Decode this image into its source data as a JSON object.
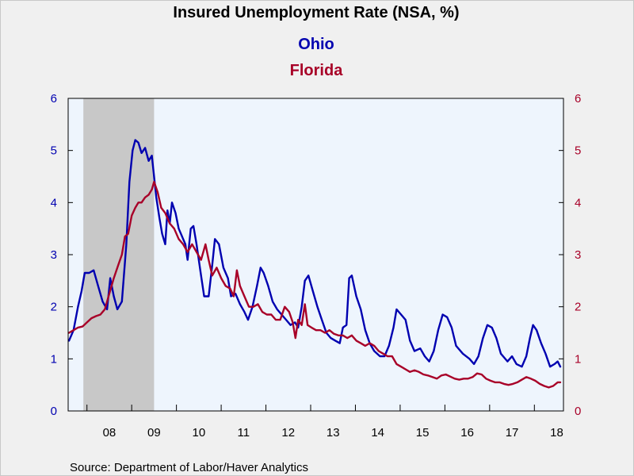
{
  "chart_data": {
    "type": "line",
    "title": "Insured Unemployment Rate (NSA, %)",
    "source": "Source:  Department of Labor/Haver Analytics",
    "x_tick_labels": [
      "08",
      "09",
      "10",
      "11",
      "12",
      "13",
      "14",
      "15",
      "16",
      "17",
      "18"
    ],
    "x_tick_years": [
      2008,
      2009,
      2010,
      2011,
      2012,
      2013,
      2014,
      2015,
      2016,
      2017,
      2018
    ],
    "xlim": [
      2007.58,
      2018.65
    ],
    "ylim": [
      0,
      6
    ],
    "y_ticks_left": [
      "0",
      "1",
      "2",
      "3",
      "4",
      "5",
      "6"
    ],
    "y_ticks_right": [
      "0",
      "1",
      "2",
      "3",
      "4",
      "5",
      "6"
    ],
    "recession_shading": [
      2007.92,
      2009.5
    ],
    "grid": false,
    "legend_placement": "top-center",
    "plot_background": "#eef5fd",
    "series": [
      {
        "name": "Ohio",
        "axis": "left",
        "color": "#0000b0",
        "points": [
          [
            2007.6,
            1.35
          ],
          [
            2007.7,
            1.55
          ],
          [
            2007.8,
            2.0
          ],
          [
            2007.88,
            2.3
          ],
          [
            2007.95,
            2.65
          ],
          [
            2008.05,
            2.65
          ],
          [
            2008.15,
            2.7
          ],
          [
            2008.25,
            2.4
          ],
          [
            2008.35,
            2.1
          ],
          [
            2008.45,
            1.95
          ],
          [
            2008.52,
            2.55
          ],
          [
            2008.6,
            2.2
          ],
          [
            2008.68,
            1.95
          ],
          [
            2008.78,
            2.1
          ],
          [
            2008.88,
            3.2
          ],
          [
            2008.95,
            4.4
          ],
          [
            2009.02,
            5.0
          ],
          [
            2009.08,
            5.2
          ],
          [
            2009.15,
            5.15
          ],
          [
            2009.22,
            4.95
          ],
          [
            2009.3,
            5.05
          ],
          [
            2009.38,
            4.8
          ],
          [
            2009.45,
            4.9
          ],
          [
            2009.55,
            4.1
          ],
          [
            2009.62,
            3.7
          ],
          [
            2009.68,
            3.4
          ],
          [
            2009.75,
            3.2
          ],
          [
            2009.8,
            3.85
          ],
          [
            2009.85,
            3.6
          ],
          [
            2009.9,
            4.0
          ],
          [
            2009.98,
            3.8
          ],
          [
            2010.05,
            3.5
          ],
          [
            2010.1,
            3.4
          ],
          [
            2010.15,
            3.3
          ],
          [
            2010.2,
            3.2
          ],
          [
            2010.25,
            2.9
          ],
          [
            2010.32,
            3.5
          ],
          [
            2010.38,
            3.55
          ],
          [
            2010.45,
            3.2
          ],
          [
            2010.55,
            2.6
          ],
          [
            2010.62,
            2.2
          ],
          [
            2010.72,
            2.2
          ],
          [
            2010.8,
            2.8
          ],
          [
            2010.86,
            3.3
          ],
          [
            2010.95,
            3.2
          ],
          [
            2011.05,
            2.75
          ],
          [
            2011.15,
            2.55
          ],
          [
            2011.22,
            2.2
          ],
          [
            2011.32,
            2.25
          ],
          [
            2011.42,
            2.05
          ],
          [
            2011.52,
            1.9
          ],
          [
            2011.6,
            1.75
          ],
          [
            2011.7,
            2.0
          ],
          [
            2011.8,
            2.4
          ],
          [
            2011.88,
            2.75
          ],
          [
            2011.95,
            2.65
          ],
          [
            2012.05,
            2.4
          ],
          [
            2012.15,
            2.1
          ],
          [
            2012.25,
            1.95
          ],
          [
            2012.35,
            1.85
          ],
          [
            2012.45,
            1.75
          ],
          [
            2012.55,
            1.65
          ],
          [
            2012.65,
            1.7
          ],
          [
            2012.72,
            1.6
          ],
          [
            2012.8,
            2.0
          ],
          [
            2012.87,
            2.5
          ],
          [
            2012.95,
            2.6
          ],
          [
            2013.05,
            2.3
          ],
          [
            2013.15,
            2.0
          ],
          [
            2013.25,
            1.75
          ],
          [
            2013.35,
            1.5
          ],
          [
            2013.45,
            1.4
          ],
          [
            2013.55,
            1.35
          ],
          [
            2013.65,
            1.3
          ],
          [
            2013.72,
            1.6
          ],
          [
            2013.8,
            1.65
          ],
          [
            2013.86,
            2.55
          ],
          [
            2013.92,
            2.6
          ],
          [
            2014.02,
            2.2
          ],
          [
            2014.12,
            1.95
          ],
          [
            2014.22,
            1.55
          ],
          [
            2014.32,
            1.3
          ],
          [
            2014.42,
            1.15
          ],
          [
            2014.55,
            1.05
          ],
          [
            2014.65,
            1.05
          ],
          [
            2014.75,
            1.25
          ],
          [
            2014.85,
            1.6
          ],
          [
            2014.92,
            1.95
          ],
          [
            2015.02,
            1.85
          ],
          [
            2015.12,
            1.75
          ],
          [
            2015.22,
            1.35
          ],
          [
            2015.32,
            1.15
          ],
          [
            2015.45,
            1.2
          ],
          [
            2015.55,
            1.05
          ],
          [
            2015.65,
            0.95
          ],
          [
            2015.75,
            1.15
          ],
          [
            2015.85,
            1.55
          ],
          [
            2015.95,
            1.85
          ],
          [
            2016.05,
            1.8
          ],
          [
            2016.15,
            1.6
          ],
          [
            2016.25,
            1.25
          ],
          [
            2016.4,
            1.1
          ],
          [
            2016.55,
            1.0
          ],
          [
            2016.65,
            0.9
          ],
          [
            2016.75,
            1.05
          ],
          [
            2016.85,
            1.4
          ],
          [
            2016.95,
            1.65
          ],
          [
            2017.05,
            1.6
          ],
          [
            2017.15,
            1.4
          ],
          [
            2017.25,
            1.1
          ],
          [
            2017.4,
            0.95
          ],
          [
            2017.5,
            1.05
          ],
          [
            2017.6,
            0.9
          ],
          [
            2017.72,
            0.85
          ],
          [
            2017.82,
            1.05
          ],
          [
            2017.9,
            1.4
          ],
          [
            2017.97,
            1.65
          ],
          [
            2018.05,
            1.55
          ],
          [
            2018.15,
            1.3
          ],
          [
            2018.25,
            1.1
          ],
          [
            2018.35,
            0.85
          ],
          [
            2018.45,
            0.9
          ],
          [
            2018.52,
            0.95
          ],
          [
            2018.58,
            0.85
          ]
        ]
      },
      {
        "name": "Florida",
        "axis": "right",
        "color": "#a80028",
        "points": [
          [
            2007.6,
            1.5
          ],
          [
            2007.7,
            1.55
          ],
          [
            2007.8,
            1.6
          ],
          [
            2007.9,
            1.62
          ],
          [
            2008.0,
            1.7
          ],
          [
            2008.1,
            1.78
          ],
          [
            2008.2,
            1.82
          ],
          [
            2008.3,
            1.85
          ],
          [
            2008.4,
            1.95
          ],
          [
            2008.5,
            2.25
          ],
          [
            2008.6,
            2.55
          ],
          [
            2008.7,
            2.8
          ],
          [
            2008.78,
            3.0
          ],
          [
            2008.85,
            3.35
          ],
          [
            2008.92,
            3.4
          ],
          [
            2009.0,
            3.75
          ],
          [
            2009.08,
            3.9
          ],
          [
            2009.15,
            4.0
          ],
          [
            2009.22,
            4.0
          ],
          [
            2009.3,
            4.1
          ],
          [
            2009.38,
            4.15
          ],
          [
            2009.45,
            4.25
          ],
          [
            2009.5,
            4.4
          ],
          [
            2009.58,
            4.2
          ],
          [
            2009.66,
            3.9
          ],
          [
            2009.75,
            3.8
          ],
          [
            2009.85,
            3.6
          ],
          [
            2009.95,
            3.5
          ],
          [
            2010.05,
            3.3
          ],
          [
            2010.15,
            3.2
          ],
          [
            2010.25,
            3.05
          ],
          [
            2010.35,
            3.2
          ],
          [
            2010.45,
            3.05
          ],
          [
            2010.55,
            2.9
          ],
          [
            2010.65,
            3.2
          ],
          [
            2010.72,
            2.9
          ],
          [
            2010.8,
            2.6
          ],
          [
            2010.9,
            2.75
          ],
          [
            2011.0,
            2.55
          ],
          [
            2011.1,
            2.4
          ],
          [
            2011.2,
            2.35
          ],
          [
            2011.28,
            2.2
          ],
          [
            2011.35,
            2.7
          ],
          [
            2011.42,
            2.4
          ],
          [
            2011.52,
            2.2
          ],
          [
            2011.62,
            2.0
          ],
          [
            2011.72,
            2.0
          ],
          [
            2011.82,
            2.05
          ],
          [
            2011.92,
            1.9
          ],
          [
            2012.02,
            1.85
          ],
          [
            2012.12,
            1.85
          ],
          [
            2012.22,
            1.75
          ],
          [
            2012.32,
            1.75
          ],
          [
            2012.42,
            2.0
          ],
          [
            2012.52,
            1.9
          ],
          [
            2012.6,
            1.7
          ],
          [
            2012.66,
            1.4
          ],
          [
            2012.72,
            1.75
          ],
          [
            2012.8,
            1.65
          ],
          [
            2012.87,
            2.05
          ],
          [
            2012.93,
            1.65
          ],
          [
            2013.02,
            1.6
          ],
          [
            2013.12,
            1.55
          ],
          [
            2013.22,
            1.55
          ],
          [
            2013.32,
            1.5
          ],
          [
            2013.42,
            1.55
          ],
          [
            2013.52,
            1.48
          ],
          [
            2013.62,
            1.45
          ],
          [
            2013.72,
            1.45
          ],
          [
            2013.82,
            1.4
          ],
          [
            2013.92,
            1.45
          ],
          [
            2014.02,
            1.35
          ],
          [
            2014.12,
            1.3
          ],
          [
            2014.22,
            1.25
          ],
          [
            2014.32,
            1.3
          ],
          [
            2014.42,
            1.25
          ],
          [
            2014.52,
            1.15
          ],
          [
            2014.62,
            1.1
          ],
          [
            2014.72,
            1.05
          ],
          [
            2014.82,
            1.05
          ],
          [
            2014.92,
            0.9
          ],
          [
            2015.02,
            0.85
          ],
          [
            2015.12,
            0.8
          ],
          [
            2015.22,
            0.75
          ],
          [
            2015.32,
            0.78
          ],
          [
            2015.42,
            0.75
          ],
          [
            2015.52,
            0.7
          ],
          [
            2015.62,
            0.68
          ],
          [
            2015.72,
            0.65
          ],
          [
            2015.82,
            0.62
          ],
          [
            2015.92,
            0.68
          ],
          [
            2016.02,
            0.7
          ],
          [
            2016.12,
            0.66
          ],
          [
            2016.22,
            0.62
          ],
          [
            2016.32,
            0.6
          ],
          [
            2016.42,
            0.62
          ],
          [
            2016.52,
            0.62
          ],
          [
            2016.62,
            0.65
          ],
          [
            2016.72,
            0.72
          ],
          [
            2016.82,
            0.7
          ],
          [
            2016.92,
            0.62
          ],
          [
            2017.02,
            0.58
          ],
          [
            2017.12,
            0.55
          ],
          [
            2017.22,
            0.55
          ],
          [
            2017.32,
            0.52
          ],
          [
            2017.42,
            0.5
          ],
          [
            2017.52,
            0.52
          ],
          [
            2017.62,
            0.55
          ],
          [
            2017.72,
            0.6
          ],
          [
            2017.82,
            0.65
          ],
          [
            2017.92,
            0.62
          ],
          [
            2018.02,
            0.58
          ],
          [
            2018.12,
            0.52
          ],
          [
            2018.22,
            0.48
          ],
          [
            2018.32,
            0.45
          ],
          [
            2018.42,
            0.48
          ],
          [
            2018.52,
            0.55
          ],
          [
            2018.58,
            0.55
          ]
        ]
      }
    ]
  }
}
